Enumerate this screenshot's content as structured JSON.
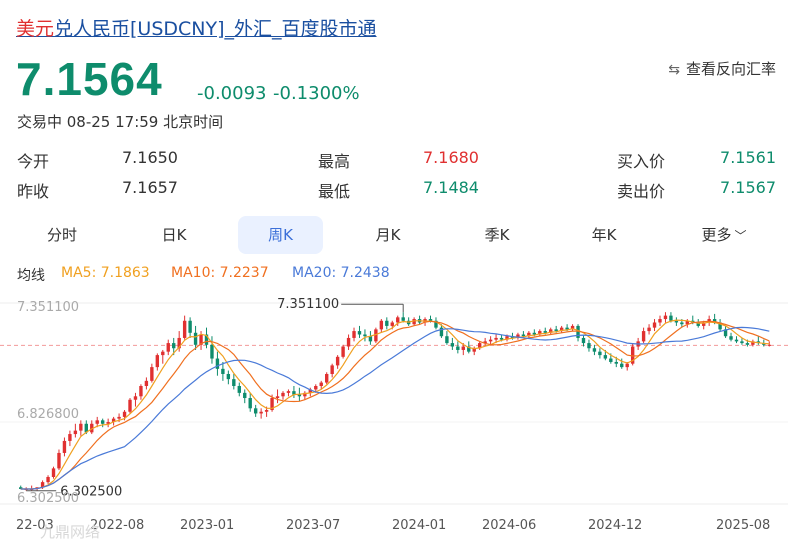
{
  "header": {
    "title_prefix": "美元",
    "title_rest": "兑人民币[USDCNY]_外汇_百度股市通",
    "price": "7.1564",
    "change": "-0.0093",
    "change_pct": "-0.1300%",
    "status": "交易中 08-25 17:59 北京时间",
    "reverse_label": "查看反向汇率"
  },
  "quote": {
    "open_label": "今开",
    "open": "7.1650",
    "prev_label": "昨收",
    "prev": "7.1657",
    "high_label": "最高",
    "high": "7.1680",
    "low_label": "最低",
    "low": "7.1484",
    "bid_label": "买入价",
    "bid": "7.1561",
    "ask_label": "卖出价",
    "ask": "7.1567"
  },
  "tabs": [
    {
      "label": "分时"
    },
    {
      "label": "日K"
    },
    {
      "label": "周K",
      "active": true
    },
    {
      "label": "月K"
    },
    {
      "label": "季K"
    },
    {
      "label": "年K"
    },
    {
      "label": "更多"
    }
  ],
  "ma_legend": {
    "label": "均线",
    "ma5": "MA5: 7.1863",
    "ma10": "MA10: 7.2237",
    "ma20": "MA20: 7.2438"
  },
  "colors": {
    "up": "#e03030",
    "down": "#0e8c6c",
    "ma5": "#f0a020",
    "ma10": "#f07020",
    "ma20": "#4a7ad8",
    "accent": "#3b6fd8",
    "title": "#1a4fa0"
  },
  "chart_data": {
    "type": "candlestick",
    "y_ticks": [
      "7.351100",
      "6.826800",
      "6.302500"
    ],
    "x_ticks": [
      "22-03",
      "2022-08",
      "2023-01",
      "2023-07",
      "2024-01",
      "2024-06",
      "2024-12",
      "2025-08"
    ],
    "ylim": [
      6.3025,
      7.3511
    ],
    "current_price": 7.1564,
    "max_label": "7.351100",
    "min_label": "6.302500",
    "watermark": "九鼎网络",
    "ohlc_weekly": [
      [
        6.33,
        6.34,
        6.32,
        6.32
      ],
      [
        6.32,
        6.33,
        6.31,
        6.32
      ],
      [
        6.32,
        6.34,
        6.31,
        6.32
      ],
      [
        6.32,
        6.33,
        6.31,
        6.33
      ],
      [
        6.33,
        6.37,
        6.32,
        6.36
      ],
      [
        6.36,
        6.4,
        6.35,
        6.39
      ],
      [
        6.39,
        6.45,
        6.38,
        6.44
      ],
      [
        6.44,
        6.55,
        6.43,
        6.53
      ],
      [
        6.53,
        6.62,
        6.51,
        6.6
      ],
      [
        6.6,
        6.66,
        6.57,
        6.64
      ],
      [
        6.64,
        6.7,
        6.62,
        6.66
      ],
      [
        6.66,
        6.72,
        6.63,
        6.7
      ],
      [
        6.7,
        6.72,
        6.64,
        6.65
      ],
      [
        6.65,
        6.72,
        6.64,
        6.7
      ],
      [
        6.7,
        6.74,
        6.68,
        6.72
      ],
      [
        6.72,
        6.73,
        6.68,
        6.7
      ],
      [
        6.7,
        6.73,
        6.68,
        6.71
      ],
      [
        6.71,
        6.74,
        6.69,
        6.73
      ],
      [
        6.73,
        6.76,
        6.71,
        6.74
      ],
      [
        6.74,
        6.78,
        6.72,
        6.77
      ],
      [
        6.77,
        6.85,
        6.76,
        6.84
      ],
      [
        6.84,
        6.88,
        6.8,
        6.86
      ],
      [
        6.86,
        6.93,
        6.84,
        6.92
      ],
      [
        6.92,
        6.97,
        6.9,
        6.95
      ],
      [
        6.95,
        7.05,
        6.94,
        7.03
      ],
      [
        7.03,
        7.11,
        7.01,
        7.1
      ],
      [
        7.1,
        7.13,
        7.05,
        7.12
      ],
      [
        7.12,
        7.19,
        7.1,
        7.17
      ],
      [
        7.17,
        7.2,
        7.1,
        7.14
      ],
      [
        7.14,
        7.24,
        7.12,
        7.2
      ],
      [
        7.2,
        7.33,
        7.19,
        7.3
      ],
      [
        7.3,
        7.32,
        7.2,
        7.23
      ],
      [
        7.23,
        7.27,
        7.13,
        7.16
      ],
      [
        7.16,
        7.24,
        7.13,
        7.22
      ],
      [
        7.22,
        7.26,
        7.14,
        7.16
      ],
      [
        7.16,
        7.21,
        7.05,
        7.08
      ],
      [
        7.08,
        7.12,
        6.98,
        7.02
      ],
      [
        7.02,
        7.06,
        6.95,
        6.99
      ],
      [
        6.99,
        7.01,
        6.93,
        6.96
      ],
      [
        6.96,
        6.99,
        6.9,
        6.92
      ],
      [
        6.92,
        6.94,
        6.86,
        6.88
      ],
      [
        6.88,
        6.9,
        6.82,
        6.85
      ],
      [
        6.85,
        6.88,
        6.77,
        6.79
      ],
      [
        6.79,
        6.81,
        6.74,
        6.76
      ],
      [
        6.76,
        6.79,
        6.73,
        6.77
      ],
      [
        6.77,
        6.8,
        6.74,
        6.78
      ],
      [
        6.78,
        6.87,
        6.77,
        6.85
      ],
      [
        6.85,
        6.9,
        6.82,
        6.86
      ],
      [
        6.86,
        6.89,
        6.84,
        6.88
      ],
      [
        6.88,
        6.9,
        6.86,
        6.89
      ],
      [
        6.89,
        6.92,
        6.85,
        6.87
      ],
      [
        6.87,
        6.91,
        6.83,
        6.86
      ],
      [
        6.86,
        6.89,
        6.84,
        6.88
      ],
      [
        6.88,
        6.91,
        6.86,
        6.9
      ],
      [
        6.9,
        6.93,
        6.88,
        6.92
      ],
      [
        6.92,
        6.95,
        6.9,
        6.94
      ],
      [
        6.94,
        7.0,
        6.93,
        6.99
      ],
      [
        6.99,
        7.05,
        6.97,
        7.04
      ],
      [
        7.04,
        7.1,
        7.02,
        7.09
      ],
      [
        7.09,
        7.16,
        7.08,
        7.15
      ],
      [
        7.15,
        7.22,
        7.13,
        7.2
      ],
      [
        7.2,
        7.26,
        7.18,
        7.24
      ],
      [
        7.24,
        7.27,
        7.2,
        7.22
      ],
      [
        7.22,
        7.25,
        7.18,
        7.21
      ],
      [
        7.21,
        7.24,
        7.16,
        7.18
      ],
      [
        7.18,
        7.26,
        7.17,
        7.25
      ],
      [
        7.25,
        7.31,
        7.23,
        7.3
      ],
      [
        7.3,
        7.32,
        7.25,
        7.27
      ],
      [
        7.27,
        7.3,
        7.25,
        7.29
      ],
      [
        7.29,
        7.33,
        7.27,
        7.32
      ],
      [
        7.32,
        7.35,
        7.29,
        7.3
      ],
      [
        7.3,
        7.32,
        7.27,
        7.28
      ],
      [
        7.28,
        7.32,
        7.27,
        7.31
      ],
      [
        7.31,
        7.33,
        7.28,
        7.29
      ],
      [
        7.29,
        7.32,
        7.27,
        7.31
      ],
      [
        7.31,
        7.33,
        7.29,
        7.3
      ],
      [
        7.3,
        7.32,
        7.25,
        7.26
      ],
      [
        7.26,
        7.28,
        7.2,
        7.21
      ],
      [
        7.21,
        7.24,
        7.16,
        7.17
      ],
      [
        7.17,
        7.2,
        7.13,
        7.15
      ],
      [
        7.15,
        7.18,
        7.11,
        7.13
      ],
      [
        7.13,
        7.17,
        7.1,
        7.15
      ],
      [
        7.15,
        7.18,
        7.11,
        7.12
      ],
      [
        7.12,
        7.15,
        7.1,
        7.14
      ],
      [
        7.14,
        7.18,
        7.13,
        7.17
      ],
      [
        7.17,
        7.2,
        7.15,
        7.18
      ],
      [
        7.18,
        7.21,
        7.16,
        7.19
      ],
      [
        7.19,
        7.22,
        7.17,
        7.2
      ],
      [
        7.2,
        7.22,
        7.18,
        7.19
      ],
      [
        7.19,
        7.22,
        7.18,
        7.21
      ],
      [
        7.21,
        7.23,
        7.19,
        7.2
      ],
      [
        7.2,
        7.23,
        7.19,
        7.22
      ],
      [
        7.22,
        7.24,
        7.2,
        7.21
      ],
      [
        7.21,
        7.24,
        7.2,
        7.23
      ],
      [
        7.23,
        7.25,
        7.21,
        7.22
      ],
      [
        7.22,
        7.25,
        7.21,
        7.24
      ],
      [
        7.24,
        7.26,
        7.22,
        7.23
      ],
      [
        7.23,
        7.26,
        7.22,
        7.25
      ],
      [
        7.25,
        7.27,
        7.23,
        7.24
      ],
      [
        7.24,
        7.27,
        7.23,
        7.26
      ],
      [
        7.26,
        7.28,
        7.24,
        7.25
      ],
      [
        7.25,
        7.28,
        7.24,
        7.27
      ],
      [
        7.27,
        7.28,
        7.18,
        7.2
      ],
      [
        7.2,
        7.22,
        7.15,
        7.17
      ],
      [
        7.17,
        7.19,
        7.12,
        7.14
      ],
      [
        7.14,
        7.16,
        7.1,
        7.12
      ],
      [
        7.12,
        7.14,
        7.08,
        7.1
      ],
      [
        7.1,
        7.13,
        7.07,
        7.08
      ],
      [
        7.08,
        7.11,
        7.05,
        7.06
      ],
      [
        7.06,
        7.09,
        7.03,
        7.05
      ],
      [
        7.05,
        7.08,
        7.02,
        7.03
      ],
      [
        7.03,
        7.06,
        7.01,
        7.05
      ],
      [
        7.05,
        7.17,
        7.04,
        7.15
      ],
      [
        7.15,
        7.2,
        7.13,
        7.18
      ],
      [
        7.18,
        7.26,
        7.17,
        7.24
      ],
      [
        7.24,
        7.28,
        7.22,
        7.26
      ],
      [
        7.26,
        7.31,
        7.24,
        7.29
      ],
      [
        7.29,
        7.33,
        7.27,
        7.31
      ],
      [
        7.31,
        7.35,
        7.29,
        7.33
      ],
      [
        7.33,
        7.35,
        7.29,
        7.3
      ],
      [
        7.3,
        7.32,
        7.27,
        7.29
      ],
      [
        7.29,
        7.31,
        7.26,
        7.28
      ],
      [
        7.28,
        7.31,
        7.26,
        7.3
      ],
      [
        7.3,
        7.33,
        7.28,
        7.29
      ],
      [
        7.29,
        7.31,
        7.26,
        7.27
      ],
      [
        7.27,
        7.3,
        7.25,
        7.29
      ],
      [
        7.29,
        7.33,
        7.27,
        7.31
      ],
      [
        7.31,
        7.34,
        7.28,
        7.29
      ],
      [
        7.29,
        7.31,
        7.24,
        7.25
      ],
      [
        7.25,
        7.27,
        7.2,
        7.21
      ],
      [
        7.21,
        7.23,
        7.18,
        7.19
      ],
      [
        7.19,
        7.21,
        7.17,
        7.18
      ],
      [
        7.18,
        7.2,
        7.16,
        7.17
      ],
      [
        7.17,
        7.19,
        7.15,
        7.16
      ],
      [
        7.16,
        7.19,
        7.15,
        7.18
      ],
      [
        7.18,
        7.21,
        7.16,
        7.17
      ],
      [
        7.17,
        7.19,
        7.15,
        7.16
      ],
      [
        7.16,
        7.18,
        7.15,
        7.16
      ]
    ]
  }
}
